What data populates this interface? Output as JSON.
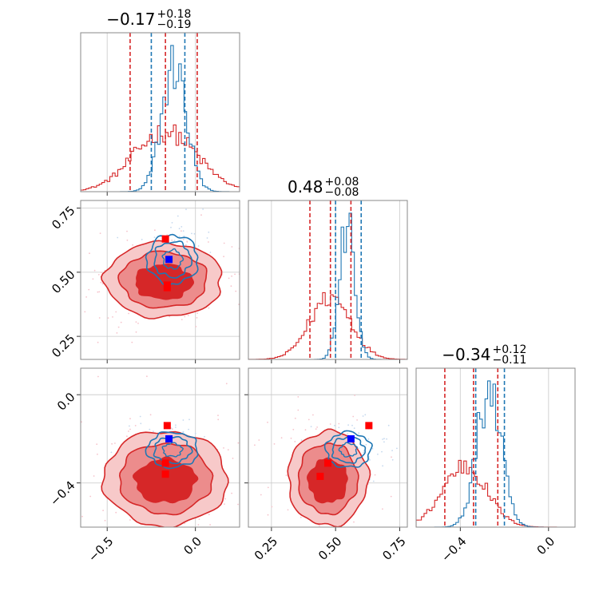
{
  "colors": {
    "red": "#d62728",
    "red_mid": "#ec8c8c",
    "red_light": "#f7c9c9",
    "blue": "#1f77b4",
    "point_blue": "#0000ff",
    "point_red": "#ff0000",
    "grid": "#c8c8c8",
    "frame": "#888888"
  },
  "chart_data": {
    "type": "corner",
    "title_parts": [
      {
        "value": "−0.17",
        "plus": "+0.18",
        "minus": "−0.19"
      },
      {
        "value": "0.48",
        "plus": "+0.08",
        "minus": "−0.08"
      },
      {
        "value": "−0.34",
        "plus": "+0.12",
        "minus": "−0.11"
      }
    ],
    "params": [
      {
        "range": [
          -0.65,
          0.25
        ],
        "ticks": [
          {
            "v": -0.5,
            "label": "−0.5"
          },
          {
            "v": 0.0,
            "label": "0.0"
          }
        ]
      },
      {
        "range": [
          0.16,
          0.78
        ],
        "ticks": [
          {
            "v": 0.25,
            "label": "0.25"
          },
          {
            "v": 0.5,
            "label": "0.50"
          },
          {
            "v": 0.75,
            "label": "0.75"
          }
        ]
      },
      {
        "range": [
          -0.6,
          0.12
        ],
        "ticks": [
          {
            "v": -0.4,
            "label": "−0.4"
          },
          {
            "v": 0.0,
            "label": "0.0"
          }
        ]
      }
    ],
    "red_hist_x": [
      {
        "mean": -0.17,
        "sd": 0.18
      },
      {
        "mean": 0.48,
        "sd": 0.08
      },
      {
        "mean": -0.38,
        "sd": 0.1
      }
    ],
    "blue_hist_x": [
      {
        "mean": -0.12,
        "sd": 0.07
      },
      {
        "mean": 0.545,
        "sd": 0.03
      },
      {
        "mean": -0.27,
        "sd": 0.055
      }
    ],
    "red_quantiles": [
      [
        -0.37,
        -0.17,
        0.01
      ],
      [
        0.4,
        0.48,
        0.56
      ],
      [
        -0.47,
        -0.34,
        -0.23
      ]
    ],
    "blue_quantiles": [
      [
        -0.25,
        -0.12,
        -0.06
      ],
      [
        0.5,
        0.545,
        0.6
      ],
      [
        -0.33,
        -0.27,
        -0.2
      ]
    ],
    "panels_2d": [
      {
        "row": 1,
        "col": 0,
        "red_center": [
          -0.18,
          0.47
        ],
        "red_sd": [
          0.17,
          0.075
        ],
        "blue_center": [
          -0.13,
          0.55
        ],
        "blue_sd": [
          0.09,
          0.06
        ],
        "blue_point": [
          -0.15,
          0.55
        ],
        "red_points": [
          [
            -0.17,
            0.63
          ],
          [
            -0.16,
            0.45
          ],
          [
            -0.16,
            0.44
          ]
        ]
      },
      {
        "row": 2,
        "col": 0,
        "red_center": [
          -0.17,
          -0.38
        ],
        "red_sd": [
          0.18,
          0.11
        ],
        "blue_center": [
          -0.13,
          -0.25
        ],
        "blue_sd": [
          0.09,
          0.05
        ],
        "blue_point": [
          -0.15,
          -0.2
        ],
        "red_points": [
          [
            -0.16,
            -0.14
          ],
          [
            -0.17,
            -0.31
          ],
          [
            -0.17,
            -0.36
          ]
        ]
      },
      {
        "row": 2,
        "col": 1,
        "red_center": [
          0.47,
          -0.38
        ],
        "red_sd": [
          0.08,
          0.11
        ],
        "blue_center": [
          0.55,
          -0.25
        ],
        "blue_sd": [
          0.055,
          0.05
        ],
        "blue_point": [
          0.56,
          -0.2
        ],
        "red_points": [
          [
            0.63,
            -0.14
          ],
          [
            0.47,
            -0.31
          ],
          [
            0.44,
            -0.37
          ]
        ]
      }
    ]
  }
}
